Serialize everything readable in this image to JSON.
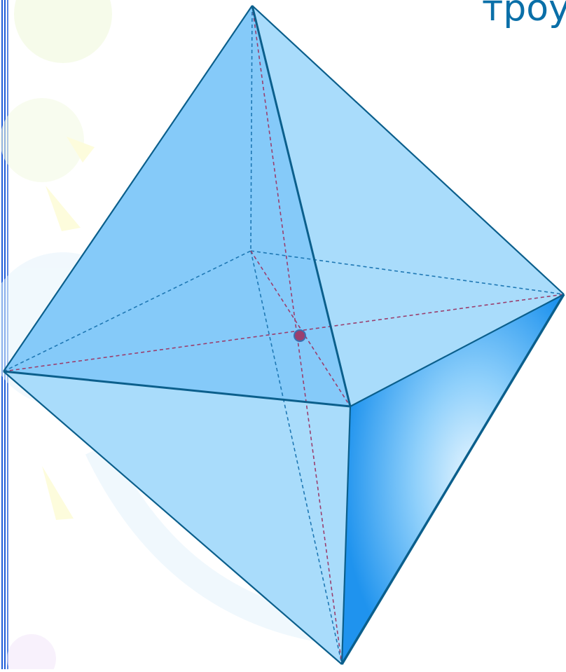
{
  "slide": {
    "title_fragment": "троу"
  },
  "colors": {
    "accent": "#0a6fa8",
    "edge": "#0b5f8c",
    "hidden_edge": "#1f78b4",
    "diagonal": "#9a3f6e",
    "face_light": "#a9dcfb",
    "face_mid": "#7ec7f9",
    "face_dark": "#2d9cf0",
    "center_point": "#9a3f6e",
    "border": "#1e5bd8"
  },
  "octahedron": {
    "vertices": [
      "top",
      "bottom",
      "left",
      "right",
      "front",
      "back",
      "center"
    ]
  }
}
